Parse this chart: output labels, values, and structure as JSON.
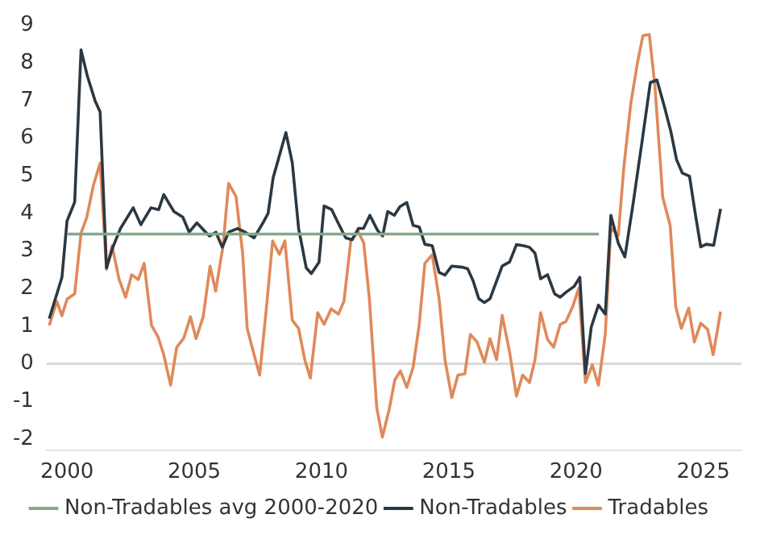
{
  "chart_data": {
    "type": "line",
    "xlim": [
      1999.2,
      2026.5
    ],
    "xticks": [
      2000,
      2005,
      2010,
      2015,
      2020,
      2025
    ],
    "ylim": [
      -2.3,
      9
    ],
    "yticks": [
      -2,
      -1,
      0,
      1,
      2,
      3,
      4,
      5,
      6,
      7,
      8,
      9
    ],
    "grid": false,
    "legend": "bottom",
    "marker": "none",
    "line_style": "solid",
    "ref_lines": [
      {
        "axis": "y",
        "value": 0,
        "color": "#d9d9d9"
      }
    ],
    "series": [
      {
        "name": "Non-Tradables avg 2000-2020",
        "color": "#86a886",
        "x": [
          2000.0,
          2020.9
        ],
        "values": [
          3.45,
          3.45
        ]
      },
      {
        "name": "Non-Tradables",
        "color": "#2b3842",
        "x": [
          1999.3,
          1999.8,
          2000.0,
          2000.3,
          2000.55,
          2000.8,
          2001.1,
          2001.3,
          2001.55,
          2001.8,
          2002.1,
          2002.6,
          2002.9,
          2003.3,
          2003.6,
          2003.8,
          2004.2,
          2004.55,
          2004.8,
          2005.1,
          2005.45,
          2005.6,
          2005.85,
          2006.1,
          2006.35,
          2006.7,
          2007.0,
          2007.35,
          2007.7,
          2007.9,
          2008.1,
          2008.6,
          2008.85,
          2009.1,
          2009.4,
          2009.6,
          2009.9,
          2010.1,
          2010.4,
          2010.65,
          2010.95,
          2011.2,
          2011.45,
          2011.65,
          2011.9,
          2012.2,
          2012.4,
          2012.6,
          2012.86,
          2013.08,
          2013.35,
          2013.6,
          2013.84,
          2014.06,
          2014.35,
          2014.62,
          2014.85,
          2015.12,
          2015.52,
          2015.74,
          2015.96,
          2016.18,
          2016.4,
          2016.62,
          2016.84,
          2017.1,
          2017.39,
          2017.66,
          2017.95,
          2018.17,
          2018.39,
          2018.61,
          2018.88,
          2019.16,
          2019.38,
          2019.6,
          2019.93,
          2020.15,
          2020.37,
          2020.6,
          2020.88,
          2021.15,
          2021.37,
          2021.66,
          2021.92,
          2022.25,
          2022.58,
          2022.92,
          2023.18,
          2023.47,
          2023.73,
          2023.95,
          2024.18,
          2024.46,
          2024.68,
          2024.9,
          2025.12,
          2025.41,
          2025.68
        ],
        "values": [
          1.2,
          2.3,
          3.8,
          4.3,
          8.35,
          7.65,
          7.0,
          6.7,
          2.55,
          3.1,
          3.6,
          4.15,
          3.7,
          4.15,
          4.1,
          4.5,
          4.05,
          3.9,
          3.5,
          3.75,
          3.5,
          3.4,
          3.5,
          3.1,
          3.5,
          3.6,
          3.5,
          3.35,
          3.75,
          4.0,
          4.95,
          6.15,
          5.35,
          3.6,
          2.55,
          2.4,
          2.7,
          4.2,
          4.1,
          3.75,
          3.35,
          3.3,
          3.6,
          3.6,
          3.95,
          3.55,
          3.4,
          4.05,
          3.95,
          4.18,
          4.29,
          3.68,
          3.64,
          3.18,
          3.14,
          2.43,
          2.36,
          2.6,
          2.57,
          2.53,
          2.2,
          1.73,
          1.63,
          1.73,
          2.13,
          2.6,
          2.71,
          3.17,
          3.14,
          3.1,
          2.94,
          2.26,
          2.37,
          1.86,
          1.77,
          1.9,
          2.06,
          2.3,
          -0.26,
          0.98,
          1.56,
          1.32,
          3.95,
          3.21,
          2.84,
          4.29,
          5.84,
          7.48,
          7.55,
          6.85,
          6.17,
          5.43,
          5.07,
          4.99,
          4.02,
          3.11,
          3.18,
          3.15,
          4.12
        ]
      },
      {
        "name": "Tradables",
        "color": "#e0895a",
        "x": [
          1999.3,
          1999.6,
          1999.8,
          2000.0,
          2000.3,
          2000.55,
          2000.77,
          2001.04,
          2001.3,
          2001.55,
          2001.77,
          2002.04,
          2002.3,
          2002.54,
          2002.8,
          2003.03,
          2003.32,
          2003.58,
          2003.8,
          2004.07,
          2004.31,
          2004.58,
          2004.85,
          2005.07,
          2005.35,
          2005.62,
          2005.84,
          2006.13,
          2006.35,
          2006.64,
          2006.9,
          2007.08,
          2007.35,
          2007.57,
          2007.83,
          2008.08,
          2008.34,
          2008.56,
          2008.85,
          2009.1,
          2009.34,
          2009.56,
          2009.85,
          2010.1,
          2010.38,
          2010.66,
          2010.88,
          2011.15,
          2011.44,
          2011.66,
          2011.88,
          2012.17,
          2012.39,
          2012.65,
          2012.88,
          2013.1,
          2013.35,
          2013.6,
          2013.84,
          2014.06,
          2014.35,
          2014.62,
          2014.85,
          2015.12,
          2015.36,
          2015.63,
          2015.85,
          2016.11,
          2016.4,
          2016.62,
          2016.88,
          2017.1,
          2017.39,
          2017.66,
          2017.9,
          2018.17,
          2018.39,
          2018.61,
          2018.88,
          2019.12,
          2019.38,
          2019.6,
          2019.87,
          2020.11,
          2020.37,
          2020.64,
          2020.88,
          2021.15,
          2021.37,
          2021.66,
          2021.88,
          2022.15,
          2022.41,
          2022.63,
          2022.88,
          2023.1,
          2023.41,
          2023.7,
          2023.92,
          2024.14,
          2024.43,
          2024.65,
          2024.9,
          2025.17,
          2025.39,
          2025.68
        ],
        "values": [
          1.02,
          1.66,
          1.28,
          1.72,
          1.86,
          3.48,
          3.88,
          4.76,
          5.34,
          2.51,
          3.14,
          2.26,
          1.77,
          2.37,
          2.24,
          2.67,
          1.02,
          0.71,
          0.24,
          -0.57,
          0.44,
          0.67,
          1.25,
          0.67,
          1.25,
          2.6,
          1.93,
          3.14,
          4.8,
          4.45,
          2.94,
          0.94,
          0.24,
          -0.3,
          1.46,
          3.27,
          2.91,
          3.27,
          1.16,
          0.94,
          0.11,
          -0.38,
          1.36,
          1.05,
          1.46,
          1.32,
          1.66,
          3.27,
          3.52,
          3.21,
          1.73,
          -1.17,
          -1.95,
          -1.24,
          -0.43,
          -0.19,
          -0.63,
          -0.09,
          1.05,
          2.67,
          2.9,
          1.73,
          0.11,
          -0.9,
          -0.3,
          -0.27,
          0.78,
          0.58,
          0.04,
          0.67,
          0.11,
          1.29,
          0.31,
          -0.86,
          -0.3,
          -0.5,
          0.11,
          1.36,
          0.65,
          0.44,
          1.05,
          1.12,
          1.52,
          2.02,
          -0.5,
          -0.03,
          -0.57,
          0.78,
          3.61,
          3.41,
          5.23,
          6.91,
          7.99,
          8.73,
          8.76,
          7.39,
          4.42,
          3.68,
          1.52,
          0.94,
          1.48,
          0.58,
          1.08,
          0.92,
          0.24,
          1.39
        ]
      }
    ]
  }
}
